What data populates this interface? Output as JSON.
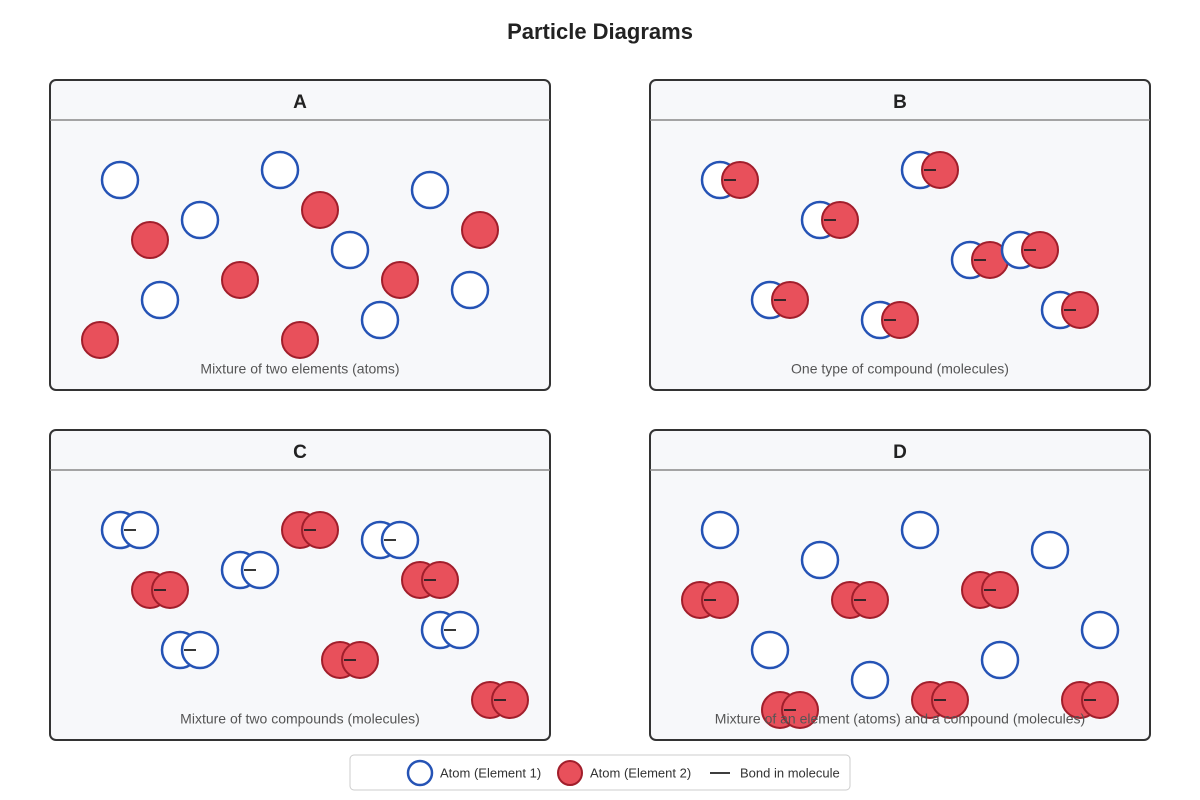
{
  "title": "Particle Diagrams",
  "panels": [
    {
      "label": "A",
      "caption": "Mixture of two elements (atoms)"
    },
    {
      "label": "B",
      "caption": "One type of compound (molecules)"
    },
    {
      "label": "C",
      "caption": "Mixture of two compounds (molecules)"
    },
    {
      "label": "D",
      "caption": "Mixture of an element (atoms) and a compound (molecules)"
    }
  ],
  "legend": [
    "Atom (Element 1)",
    "Atom (Element 2)",
    "Bond in molecule"
  ]
}
